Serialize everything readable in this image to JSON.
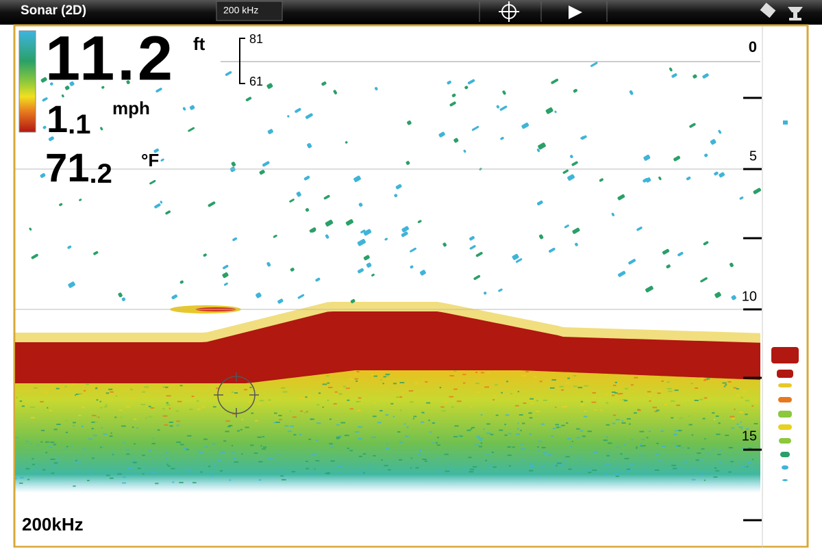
{
  "header": {
    "title": "Sonar (2D)",
    "frequency": "200 kHz"
  },
  "readouts": {
    "depth": {
      "value": "11.2",
      "unit": "ft"
    },
    "speed": {
      "main": "1",
      "decimal": ".1",
      "unit": "mph"
    },
    "temperature": {
      "main": "71",
      "decimal": ".2",
      "unit": "°F"
    }
  },
  "zoom_bracket": {
    "top": "81",
    "bottom": "61"
  },
  "depth_scale": [
    "0",
    "5",
    "10",
    "15"
  ],
  "frequency_label": "200kHz"
}
